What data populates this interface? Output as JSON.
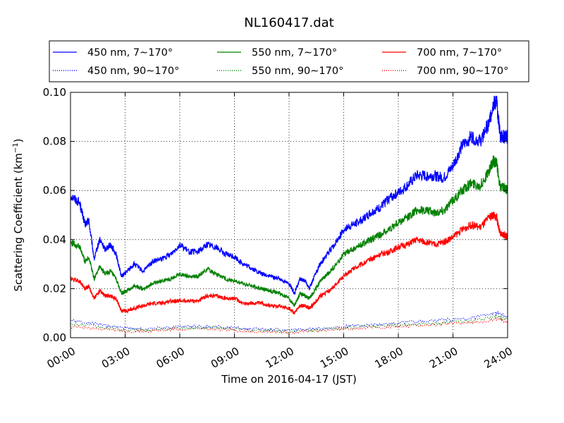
{
  "chart_data": {
    "type": "line",
    "title": "NL160417.dat",
    "xlabel": "Time on 2016-04-17 (JST)",
    "ylabel": "Scattering Coefficient (km",
    "ylabel_sup": "−1",
    "ylabel_end": ")",
    "x_unit": "hours",
    "xlim": [
      0,
      24
    ],
    "ylim": [
      0,
      0.1
    ],
    "grid": true,
    "legend_position": "top",
    "x_ticks": [
      0,
      3,
      6,
      9,
      12,
      15,
      18,
      21,
      24
    ],
    "x_tick_labels": [
      "00:00",
      "03:00",
      "06:00",
      "09:00",
      "12:00",
      "15:00",
      "18:00",
      "21:00",
      "24:00"
    ],
    "y_ticks": [
      0,
      0.02,
      0.04,
      0.06,
      0.08,
      0.1
    ],
    "y_tick_labels": [
      "0.00",
      "0.02",
      "0.04",
      "0.06",
      "0.08",
      "0.10"
    ],
    "series": [
      {
        "name": "450 nm, 7∼170°",
        "color": "#0000ff",
        "style": "solid",
        "x": [
          0,
          0.5,
          0.8,
          1.0,
          1.3,
          1.6,
          1.9,
          2.2,
          2.5,
          2.8,
          3.1,
          3.5,
          4.0,
          4.5,
          5.0,
          5.5,
          6.0,
          6.5,
          7.0,
          7.5,
          8.0,
          8.5,
          9.0,
          9.5,
          10.0,
          10.5,
          11.0,
          11.5,
          12.0,
          12.3,
          12.6,
          12.9,
          13.1,
          13.4,
          13.7,
          14.0,
          14.5,
          15.0,
          15.5,
          16.0,
          16.5,
          17.0,
          17.5,
          18.0,
          18.5,
          19.0,
          19.5,
          20.0,
          20.5,
          21.0,
          21.5,
          22.0,
          22.5,
          23.0,
          23.2,
          23.4,
          23.6,
          23.8,
          24.0
        ],
        "y": [
          0.058,
          0.055,
          0.046,
          0.048,
          0.032,
          0.04,
          0.036,
          0.038,
          0.034,
          0.025,
          0.027,
          0.03,
          0.027,
          0.031,
          0.032,
          0.034,
          0.038,
          0.035,
          0.035,
          0.038,
          0.037,
          0.034,
          0.033,
          0.03,
          0.028,
          0.026,
          0.025,
          0.024,
          0.022,
          0.018,
          0.024,
          0.023,
          0.02,
          0.025,
          0.03,
          0.033,
          0.038,
          0.044,
          0.046,
          0.048,
          0.051,
          0.053,
          0.057,
          0.059,
          0.062,
          0.066,
          0.066,
          0.066,
          0.065,
          0.07,
          0.078,
          0.082,
          0.08,
          0.088,
          0.095,
          0.096,
          0.082,
          0.082,
          0.082
        ]
      },
      {
        "name": "550 nm, 7∼170°",
        "color": "#008000",
        "style": "solid",
        "x": [
          0,
          0.5,
          0.8,
          1.0,
          1.3,
          1.6,
          1.9,
          2.2,
          2.5,
          2.8,
          3.1,
          3.5,
          4.0,
          4.5,
          5.0,
          5.5,
          6.0,
          6.5,
          7.0,
          7.5,
          8.0,
          8.5,
          9.0,
          9.5,
          10.0,
          10.5,
          11.0,
          11.5,
          12.0,
          12.3,
          12.6,
          12.9,
          13.1,
          13.4,
          13.7,
          14.0,
          14.5,
          15.0,
          15.5,
          16.0,
          16.5,
          17.0,
          17.5,
          18.0,
          18.5,
          19.0,
          19.5,
          20.0,
          20.5,
          21.0,
          21.5,
          22.0,
          22.5,
          23.0,
          23.2,
          23.4,
          23.6,
          23.8,
          24.0
        ],
        "y": [
          0.039,
          0.037,
          0.031,
          0.033,
          0.024,
          0.029,
          0.026,
          0.027,
          0.024,
          0.018,
          0.019,
          0.021,
          0.02,
          0.022,
          0.023,
          0.024,
          0.026,
          0.025,
          0.025,
          0.028,
          0.026,
          0.024,
          0.023,
          0.022,
          0.021,
          0.02,
          0.019,
          0.018,
          0.016,
          0.013,
          0.018,
          0.017,
          0.016,
          0.019,
          0.023,
          0.025,
          0.029,
          0.034,
          0.036,
          0.038,
          0.04,
          0.042,
          0.044,
          0.047,
          0.049,
          0.052,
          0.052,
          0.051,
          0.052,
          0.056,
          0.06,
          0.063,
          0.062,
          0.068,
          0.072,
          0.071,
          0.061,
          0.061,
          0.06
        ]
      },
      {
        "name": "700 nm, 7∼170°",
        "color": "#ff0000",
        "style": "solid",
        "x": [
          0,
          0.5,
          0.8,
          1.0,
          1.3,
          1.6,
          1.9,
          2.2,
          2.5,
          2.8,
          3.1,
          3.5,
          4.0,
          4.5,
          5.0,
          5.5,
          6.0,
          6.5,
          7.0,
          7.5,
          8.0,
          8.5,
          9.0,
          9.5,
          10.0,
          10.5,
          11.0,
          11.5,
          12.0,
          12.3,
          12.6,
          12.9,
          13.1,
          13.4,
          13.7,
          14.0,
          14.5,
          15.0,
          15.5,
          16.0,
          16.5,
          17.0,
          17.5,
          18.0,
          18.5,
          19.0,
          19.5,
          20.0,
          20.5,
          21.0,
          21.5,
          22.0,
          22.5,
          23.0,
          23.2,
          23.4,
          23.6,
          23.8,
          24.0
        ],
        "y": [
          0.024,
          0.023,
          0.02,
          0.021,
          0.016,
          0.019,
          0.017,
          0.017,
          0.016,
          0.011,
          0.011,
          0.012,
          0.013,
          0.014,
          0.014,
          0.015,
          0.015,
          0.015,
          0.015,
          0.017,
          0.017,
          0.016,
          0.016,
          0.014,
          0.014,
          0.014,
          0.013,
          0.013,
          0.012,
          0.01,
          0.013,
          0.013,
          0.012,
          0.014,
          0.017,
          0.018,
          0.021,
          0.025,
          0.028,
          0.03,
          0.032,
          0.034,
          0.035,
          0.037,
          0.038,
          0.04,
          0.039,
          0.038,
          0.039,
          0.041,
          0.044,
          0.046,
          0.045,
          0.049,
          0.05,
          0.049,
          0.042,
          0.042,
          0.041
        ]
      },
      {
        "name": "450 nm, 90∼170°",
        "color": "#0000ff",
        "style": "dotted",
        "x": [
          0,
          1,
          2,
          3,
          4,
          5,
          6,
          7,
          8,
          9,
          10,
          11,
          12,
          13,
          14,
          15,
          16,
          17,
          18,
          19,
          20,
          21,
          22,
          23,
          23.5,
          24
        ],
        "y": [
          0.007,
          0.006,
          0.005,
          0.004,
          0.0035,
          0.004,
          0.0045,
          0.0045,
          0.0045,
          0.004,
          0.0035,
          0.0035,
          0.003,
          0.0035,
          0.004,
          0.0045,
          0.005,
          0.0055,
          0.006,
          0.0065,
          0.007,
          0.0075,
          0.008,
          0.0095,
          0.01,
          0.0085
        ]
      },
      {
        "name": "550 nm, 90∼170°",
        "color": "#008000",
        "style": "dotted",
        "x": [
          0,
          1,
          2,
          3,
          4,
          5,
          6,
          7,
          8,
          9,
          10,
          11,
          12,
          13,
          14,
          15,
          16,
          17,
          18,
          19,
          20,
          21,
          22,
          23,
          23.5,
          24
        ],
        "y": [
          0.0055,
          0.005,
          0.004,
          0.003,
          0.003,
          0.0035,
          0.004,
          0.004,
          0.004,
          0.0035,
          0.003,
          0.003,
          0.0025,
          0.003,
          0.0035,
          0.004,
          0.0045,
          0.0048,
          0.005,
          0.0055,
          0.006,
          0.0065,
          0.007,
          0.008,
          0.0085,
          0.0075
        ]
      },
      {
        "name": "700 nm, 90∼170°",
        "color": "#ff0000",
        "style": "dotted",
        "x": [
          0,
          1,
          2,
          3,
          4,
          5,
          6,
          7,
          8,
          9,
          10,
          11,
          12,
          13,
          14,
          15,
          16,
          17,
          18,
          19,
          20,
          21,
          22,
          23,
          23.5,
          24
        ],
        "y": [
          0.0045,
          0.004,
          0.0035,
          0.0025,
          0.0025,
          0.003,
          0.0035,
          0.0035,
          0.0035,
          0.003,
          0.0025,
          0.0025,
          0.002,
          0.0025,
          0.003,
          0.0035,
          0.004,
          0.0042,
          0.0045,
          0.005,
          0.0052,
          0.0058,
          0.006,
          0.007,
          0.0075,
          0.0065
        ]
      }
    ],
    "legend_order": [
      0,
      1,
      2,
      3,
      4,
      5
    ]
  }
}
